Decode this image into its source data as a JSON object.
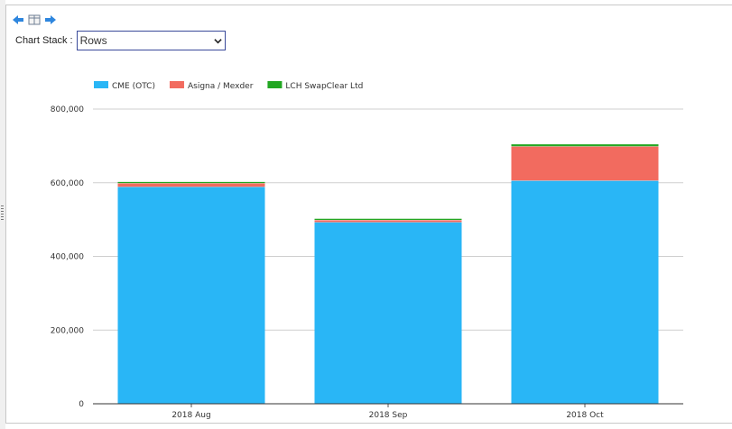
{
  "toolbar": {
    "icons": [
      "back-arrow-icon",
      "table-view-icon",
      "forward-arrow-icon"
    ]
  },
  "controls": {
    "stack_label": "Chart Stack :",
    "stack_value": "Rows"
  },
  "colors": {
    "cme": "#29b6f6",
    "asigna": "#f26b5f",
    "lch": "#22a722",
    "axis": "#333333",
    "grid": "#cfcfcf"
  },
  "chart_data": {
    "type": "bar",
    "stacked": true,
    "categories": [
      "2018 Aug",
      "2018 Sep",
      "2018 Oct"
    ],
    "series": [
      {
        "name": "CME (OTC)",
        "color": "#29b6f6",
        "values": [
          589000,
          493000,
          606000
        ]
      },
      {
        "name": "Asigna / Mexder",
        "color": "#f26b5f",
        "values": [
          10000,
          6000,
          93000
        ]
      },
      {
        "name": "LCH SwapClear Ltd",
        "color": "#22a722",
        "values": [
          4000,
          4000,
          6000
        ]
      }
    ],
    "ylim": [
      0,
      800000
    ],
    "yticks": [
      0,
      200000,
      400000,
      600000,
      800000
    ],
    "ytick_labels": [
      "0",
      "200,000",
      "400,000",
      "600,000",
      "800,000"
    ],
    "grid": true,
    "legend_position": "top-left",
    "title": "",
    "xlabel": "",
    "ylabel": ""
  }
}
